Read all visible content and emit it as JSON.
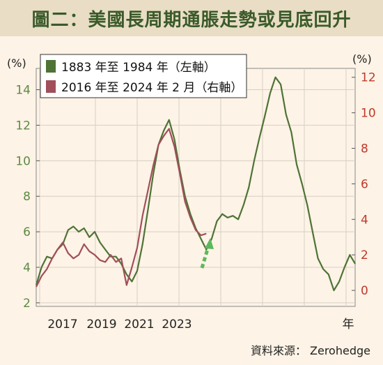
{
  "title": "圖二：美國長周期通脹走勢或見底回升",
  "source": "資料來源： Zerohedge",
  "colors": {
    "background": "#fdf3e6",
    "title_bar": "#e9ddc5",
    "title_text": "#3a5a2a",
    "series_1883": "#4f7236",
    "series_2016": "#a14f5a",
    "left_axis": "#5e8a45",
    "right_axis": "#c0392b",
    "arrow": "#5cb85c"
  },
  "chart_data": {
    "type": "line",
    "left_axis": {
      "unit_label": "(%)",
      "ylim": [
        1.8,
        15.2
      ],
      "ticks": [
        2,
        4,
        6,
        8,
        10,
        12,
        14
      ]
    },
    "right_axis": {
      "unit_label": "(%)",
      "ylim": [
        -0.9,
        12.5
      ],
      "ticks": [
        0,
        2,
        4,
        6,
        8,
        10,
        12
      ]
    },
    "x_ticks": [
      "2017",
      "2019",
      "2021",
      "2023"
    ],
    "x_axis_suffix": "年",
    "grid": true,
    "legend_position": "top-left",
    "series": [
      {
        "name": "1883 年至 1984 年（左軸）",
        "axis": "left",
        "points": [
          [
            0,
            3.0
          ],
          [
            2,
            4.0
          ],
          [
            4,
            4.6
          ],
          [
            6,
            4.5
          ],
          [
            8,
            5.0
          ],
          [
            10,
            5.3
          ],
          [
            12,
            6.1
          ],
          [
            14,
            6.3
          ],
          [
            16,
            6.0
          ],
          [
            18,
            6.2
          ],
          [
            20,
            5.7
          ],
          [
            22,
            6.0
          ],
          [
            24,
            5.4
          ],
          [
            26,
            5.0
          ],
          [
            28,
            4.6
          ],
          [
            30,
            4.6
          ],
          [
            32,
            4.2
          ],
          [
            34,
            3.6
          ],
          [
            36,
            3.2
          ],
          [
            38,
            3.8
          ],
          [
            40,
            5.3
          ],
          [
            42,
            7.2
          ],
          [
            44,
            9.2
          ],
          [
            46,
            10.9
          ],
          [
            48,
            11.7
          ],
          [
            50,
            12.3
          ],
          [
            52,
            11.2
          ],
          [
            54,
            9.5
          ],
          [
            56,
            8.0
          ],
          [
            58,
            7.0
          ],
          [
            60,
            6.2
          ],
          [
            62,
            5.6
          ],
          [
            64,
            5.0
          ],
          [
            66,
            5.6
          ],
          [
            68,
            6.6
          ],
          [
            70,
            7.0
          ],
          [
            72,
            6.8
          ],
          [
            74,
            6.9
          ],
          [
            76,
            6.7
          ],
          [
            78,
            7.5
          ],
          [
            80,
            8.5
          ],
          [
            82,
            10.0
          ],
          [
            84,
            11.3
          ],
          [
            86,
            12.5
          ],
          [
            88,
            13.8
          ],
          [
            90,
            14.7
          ],
          [
            92,
            14.3
          ],
          [
            94,
            12.6
          ],
          [
            96,
            11.6
          ],
          [
            98,
            9.8
          ],
          [
            100,
            8.7
          ],
          [
            102,
            7.5
          ],
          [
            104,
            6.0
          ],
          [
            106,
            4.5
          ],
          [
            108,
            3.9
          ],
          [
            110,
            3.6
          ],
          [
            112,
            2.7
          ],
          [
            114,
            3.2
          ],
          [
            116,
            4.0
          ],
          [
            118,
            4.7
          ],
          [
            120,
            4.2
          ]
        ]
      },
      {
        "name": "2016 年至 2024 年 2 月（右軸）",
        "axis": "right",
        "points": [
          [
            0,
            0.2
          ],
          [
            2,
            0.8
          ],
          [
            4,
            1.2
          ],
          [
            6,
            1.8
          ],
          [
            8,
            2.3
          ],
          [
            10,
            2.7
          ],
          [
            12,
            2.1
          ],
          [
            14,
            1.8
          ],
          [
            16,
            2.0
          ],
          [
            18,
            2.6
          ],
          [
            20,
            2.2
          ],
          [
            22,
            2.0
          ],
          [
            24,
            1.7
          ],
          [
            26,
            1.6
          ],
          [
            28,
            2.0
          ],
          [
            30,
            1.6
          ],
          [
            32,
            1.8
          ],
          [
            34,
            0.3
          ],
          [
            36,
            1.3
          ],
          [
            38,
            2.4
          ],
          [
            40,
            4.2
          ],
          [
            42,
            5.6
          ],
          [
            44,
            7.0
          ],
          [
            46,
            8.2
          ],
          [
            48,
            8.7
          ],
          [
            50,
            9.1
          ],
          [
            52,
            8.1
          ],
          [
            54,
            6.6
          ],
          [
            56,
            5.0
          ],
          [
            58,
            4.1
          ],
          [
            60,
            3.4
          ],
          [
            62,
            3.1
          ],
          [
            64,
            3.2
          ]
        ]
      }
    ],
    "annotation": "upward arrow"
  }
}
